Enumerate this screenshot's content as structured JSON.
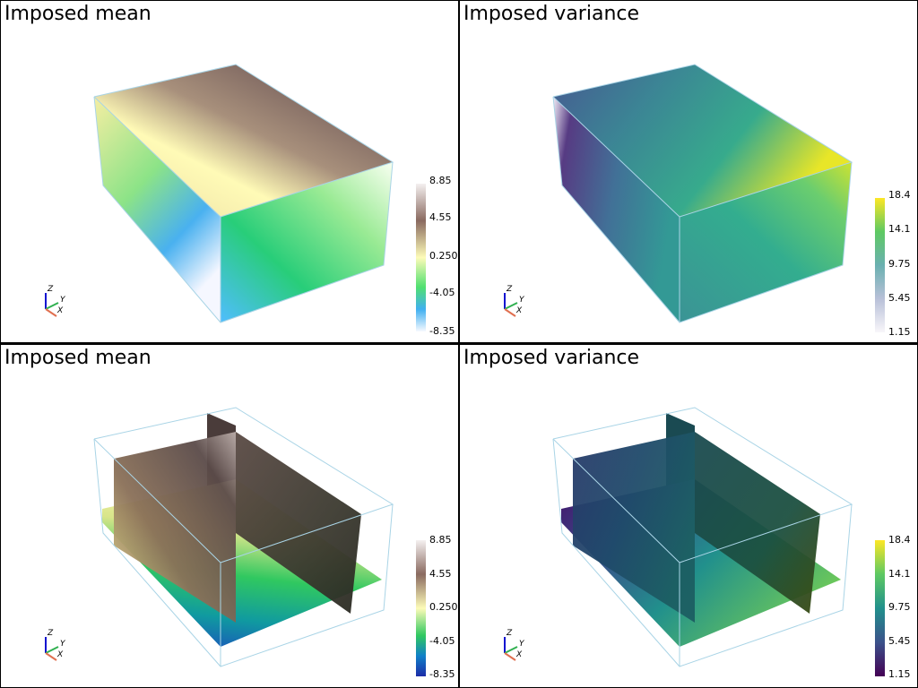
{
  "panels": [
    {
      "title": "Imposed mean",
      "colormap": "gist_earth_like",
      "colorbar": [
        "8.85",
        "4.55",
        "0.250",
        "-4.05",
        "-8.35"
      ],
      "view": "volume"
    },
    {
      "title": "Imposed variance",
      "colormap": "viridis_like",
      "colorbar": [
        "18.4",
        "14.1",
        "9.75",
        "5.45",
        "1.15"
      ],
      "view": "volume"
    },
    {
      "title": "Imposed mean",
      "colormap": "gist_earth_like",
      "colorbar": [
        "8.85",
        "4.55",
        "0.250",
        "-4.05",
        "-8.35"
      ],
      "view": "slices"
    },
    {
      "title": "Imposed variance",
      "colormap": "viridis_like",
      "colorbar": [
        "18.4",
        "14.1",
        "9.75",
        "5.45",
        "1.15"
      ],
      "view": "slices"
    }
  ],
  "axes_labels": {
    "x": "X",
    "y": "Y",
    "z": "Z"
  },
  "colors": {
    "outline": "#a9d4e6",
    "background": "#ffffff",
    "divider": "#000000"
  }
}
